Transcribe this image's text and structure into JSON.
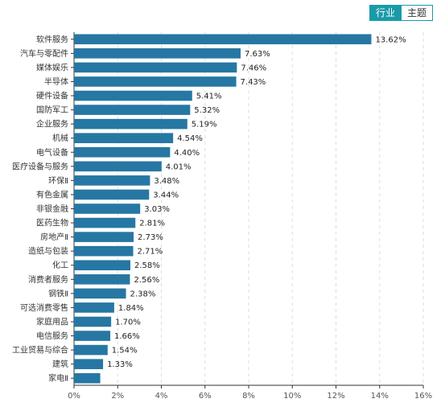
{
  "toggle": {
    "industry_label": "行业",
    "theme_label": "主题"
  },
  "colors": {
    "bar": "#2677a3",
    "grid": "#dddddd",
    "axis": "#333333",
    "accent": "#1a9aa8"
  },
  "chart_data": {
    "type": "bar",
    "orientation": "horizontal",
    "categories": [
      "软件服务",
      "汽车与零配件",
      "媒体娱乐",
      "半导体",
      "硬件设备",
      "国防军工",
      "企业服务",
      "机械",
      "电气设备",
      "医疗设备与服务",
      "环保Ⅱ",
      "有色金属",
      "非银金融",
      "医药生物",
      "房地产Ⅱ",
      "造纸与包装",
      "化工",
      "消费者服务",
      "钢铁Ⅱ",
      "可选消费零售",
      "家庭用品",
      "电信服务",
      "工业贸易与综合",
      "建筑",
      "家电Ⅱ"
    ],
    "values": [
      13.62,
      7.63,
      7.46,
      7.43,
      5.41,
      5.32,
      5.19,
      4.54,
      4.4,
      4.01,
      3.48,
      3.44,
      3.03,
      2.81,
      2.73,
      2.71,
      2.58,
      2.56,
      2.38,
      1.84,
      1.7,
      1.66,
      1.54,
      1.33,
      1.2
    ],
    "value_labels": [
      "13.62%",
      "7.63%",
      "7.46%",
      "7.43%",
      "5.41%",
      "5.32%",
      "5.19%",
      "4.54%",
      "4.40%",
      "4.01%",
      "3.48%",
      "3.44%",
      "3.03%",
      "2.81%",
      "2.73%",
      "2.71%",
      "2.58%",
      "2.56%",
      "2.38%",
      "1.84%",
      "1.70%",
      "1.66%",
      "1.54%",
      "1.33%",
      ""
    ],
    "xticks": [
      "0%",
      "2%",
      "4%",
      "6%",
      "8%",
      "10%",
      "12%",
      "14%",
      "16%"
    ],
    "xlim": [
      0,
      16
    ],
    "grid": true
  }
}
